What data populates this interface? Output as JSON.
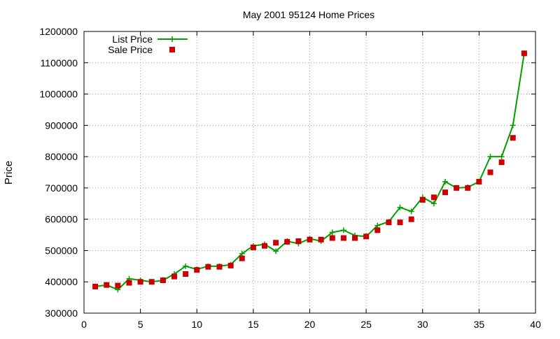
{
  "chart_data": {
    "type": "line",
    "title": "May 2001 95124 Home Prices",
    "xlabel": "",
    "ylabel": "Price",
    "xlim": [
      0,
      40
    ],
    "ylim": [
      300000,
      1200000
    ],
    "x_ticks": [
      0,
      5,
      10,
      15,
      20,
      25,
      30,
      35,
      40
    ],
    "y_ticks": [
      300000,
      400000,
      500000,
      600000,
      700000,
      800000,
      900000,
      1000000,
      1100000,
      1200000
    ],
    "grid": true,
    "legend_position": "top-left",
    "series": [
      {
        "name": "List Price",
        "style": "line-with-plus-markers",
        "color": "#00a000",
        "x": [
          1,
          2,
          3,
          4,
          5,
          6,
          7,
          8,
          9,
          10,
          11,
          12,
          13,
          14,
          15,
          16,
          17,
          18,
          19,
          20,
          21,
          22,
          23,
          24,
          25,
          26,
          27,
          28,
          29,
          30,
          31,
          32,
          33,
          34,
          35,
          36,
          37,
          38,
          39
        ],
        "values": [
          385000,
          390000,
          375000,
          410000,
          405000,
          400000,
          405000,
          425000,
          450000,
          440000,
          450000,
          450000,
          455000,
          490000,
          515000,
          520000,
          498000,
          530000,
          522000,
          538000,
          530000,
          558000,
          565000,
          548000,
          545000,
          580000,
          592000,
          638000,
          625000,
          670000,
          650000,
          720000,
          700000,
          702000,
          720000,
          800000,
          800000,
          900000,
          1130000
        ]
      },
      {
        "name": "Sale Price",
        "style": "square-markers",
        "color": "#cc0000",
        "x": [
          1,
          2,
          3,
          4,
          5,
          6,
          7,
          8,
          9,
          10,
          11,
          12,
          13,
          14,
          15,
          16,
          17,
          18,
          19,
          20,
          21,
          22,
          23,
          24,
          25,
          26,
          27,
          28,
          29,
          30,
          31,
          32,
          33,
          34,
          35,
          36,
          37,
          38,
          39
        ],
        "values": [
          385000,
          390000,
          388000,
          397000,
          400000,
          400000,
          405000,
          417000,
          425000,
          438000,
          448000,
          448000,
          452000,
          475000,
          510000,
          515000,
          525000,
          528000,
          530000,
          535000,
          535000,
          540000,
          540000,
          540000,
          545000,
          565000,
          590000,
          590000,
          600000,
          662000,
          670000,
          686000,
          700000,
          700000,
          720000,
          750000,
          782000,
          860000,
          1130000
        ]
      }
    ]
  }
}
